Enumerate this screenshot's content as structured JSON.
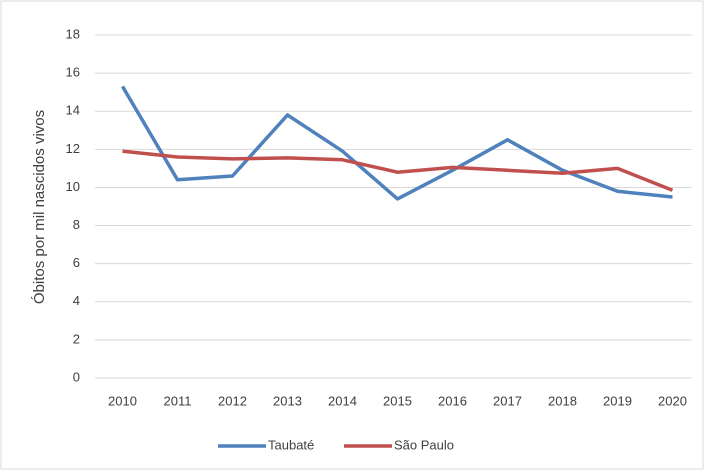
{
  "chart_data": {
    "type": "line",
    "y_label": "Óbitos por mil nascidos vivos",
    "categories": [
      "2010",
      "2011",
      "2012",
      "2013",
      "2014",
      "2015",
      "2016",
      "2017",
      "2018",
      "2019",
      "2020"
    ],
    "series": [
      {
        "name": "Taubaté",
        "color": "#4f81bd",
        "values": [
          15.3,
          10.4,
          10.6,
          13.8,
          11.9,
          9.4,
          10.9,
          12.5,
          10.9,
          9.8,
          9.5
        ]
      },
      {
        "name": "São Paulo",
        "color": "#c0504d",
        "values": [
          11.9,
          11.6,
          11.5,
          11.55,
          11.45,
          10.8,
          11.05,
          10.9,
          10.75,
          11.0,
          9.85
        ]
      }
    ],
    "ylim": [
      0,
      18
    ],
    "yticks": [
      0,
      2,
      4,
      6,
      8,
      10,
      12,
      14,
      16,
      18
    ],
    "grid": true,
    "legend": "bottom"
  }
}
